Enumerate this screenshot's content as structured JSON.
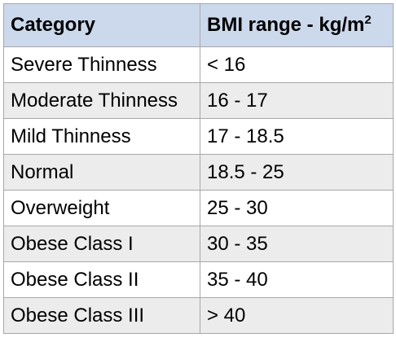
{
  "table": {
    "header": {
      "category": "Category",
      "range": "BMI range - kg/m",
      "range_superscript": "2"
    },
    "rows": [
      {
        "category": "Severe Thinness",
        "range": "< 16"
      },
      {
        "category": "Moderate Thinness",
        "range": "16 - 17"
      },
      {
        "category": "Mild Thinness",
        "range": "17 - 18.5"
      },
      {
        "category": "Normal",
        "range": "18.5 - 25"
      },
      {
        "category": "Overweight",
        "range": "25 - 30"
      },
      {
        "category": "Obese Class I",
        "range": "30 - 35"
      },
      {
        "category": "Obese Class II",
        "range": "35 - 40"
      },
      {
        "category": "Obese Class III",
        "range": "> 40"
      }
    ]
  },
  "colors": {
    "header_background": "#ccd9ec",
    "shaded_row_background": "#ececec",
    "plain_row_background": "#ffffff",
    "border": "#a8a8a8"
  }
}
